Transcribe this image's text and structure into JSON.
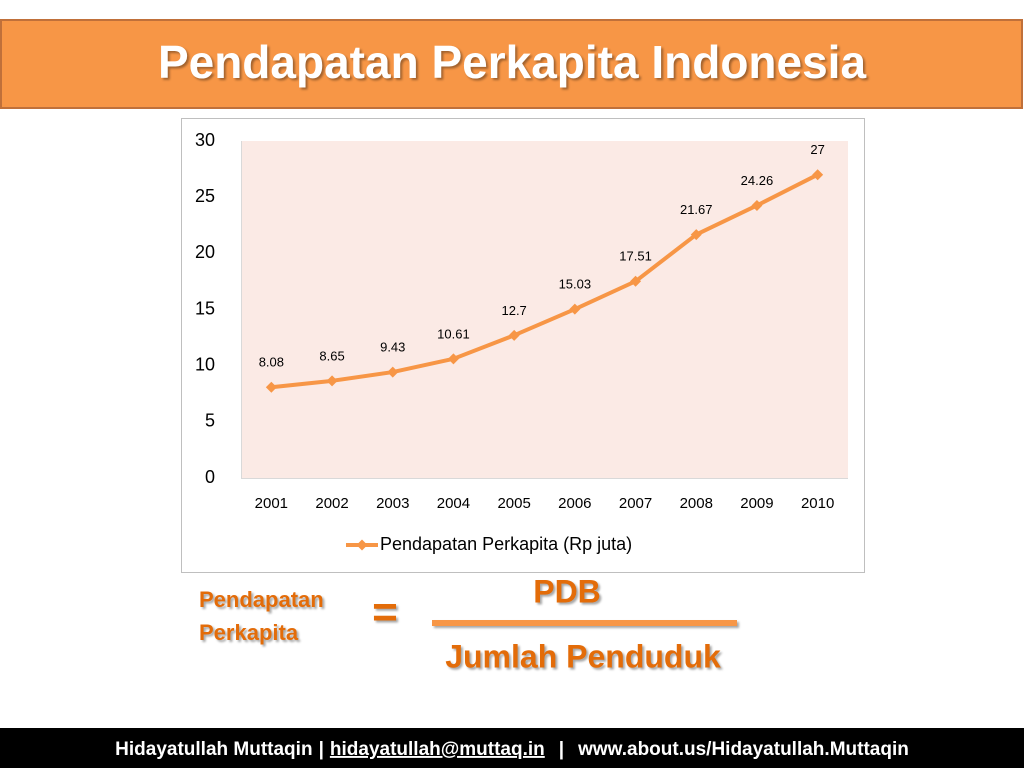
{
  "header": {
    "title": "Pendapatan Perkapita Indonesia"
  },
  "chart_data": {
    "type": "line",
    "categories": [
      "2001",
      "2002",
      "2003",
      "2004",
      "2005",
      "2006",
      "2007",
      "2008",
      "2009",
      "2010"
    ],
    "series": [
      {
        "name": "Pendapatan Perkapita (Rp juta)",
        "color": "#f79646",
        "values": [
          8.08,
          8.65,
          9.43,
          10.61,
          12.7,
          15.03,
          17.51,
          21.67,
          24.26,
          27
        ]
      }
    ],
    "ylim": [
      0,
      30
    ],
    "yticks": [
      0,
      5,
      10,
      15,
      20,
      25,
      30
    ],
    "grid": false,
    "legend": "bottom",
    "plot_background": "#fbeae5"
  },
  "formula": {
    "lhs": [
      "Pendapatan",
      "Perkapita"
    ],
    "equals": "=",
    "numerator": "PDB",
    "denominator": "Jumlah Penduduk"
  },
  "footer": {
    "author": "Hidayatullah Muttaqin",
    "separators": [
      "|",
      "|"
    ],
    "email": "hidayatullah@muttaq.in",
    "website": "www.about.us/Hidayatullah.Muttaqin"
  }
}
